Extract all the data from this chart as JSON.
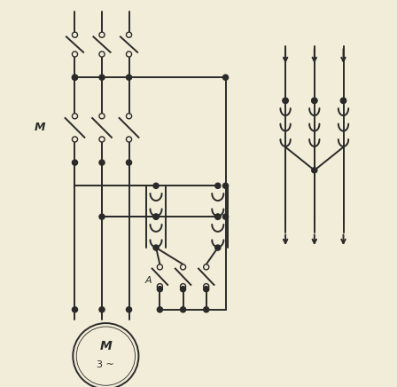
{
  "bg_color": "#f2edd8",
  "line_color": "#2a2a2a",
  "lw": 1.4,
  "lw_thin": 1.0,
  "dot_r": 0.007,
  "open_dot_r": 0.007,
  "fig_w": 4.48,
  "fig_h": 4.36,
  "dpi": 100,
  "label_M": "M",
  "label_A": "A",
  "motor_label1": "M",
  "motor_label2": "3 ~"
}
